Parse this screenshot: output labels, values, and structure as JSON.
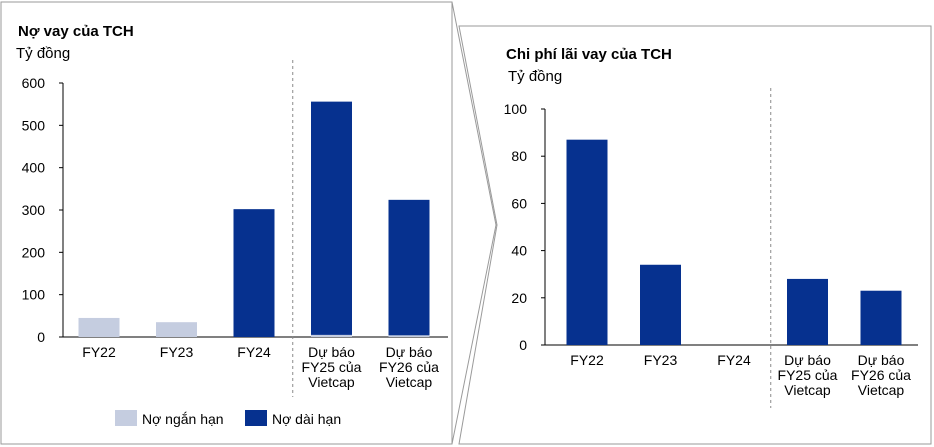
{
  "chart_data": [
    {
      "type": "bar",
      "title": "Nợ vay của TCH",
      "ylabel": "Tỷ đồng",
      "stacked": true,
      "categories": [
        "FY22",
        "FY23",
        "FY24",
        "Dự báo FY25 của Vietcap",
        "Dự báo FY26 của Vietcap"
      ],
      "category_lines": [
        [
          "FY22"
        ],
        [
          "FY23"
        ],
        [
          "FY24"
        ],
        [
          "Dự báo",
          "FY25 của",
          "Vietcap"
        ],
        [
          "Dự báo",
          "FY26 của",
          "Vietcap"
        ]
      ],
      "series": [
        {
          "name": "Nợ ngắn hạn",
          "color": "#c5cde0",
          "values": [
            45,
            35,
            0,
            5,
            4
          ]
        },
        {
          "name": "Nợ dài hạn",
          "color": "#06318f",
          "values": [
            0,
            0,
            302,
            551,
            320
          ]
        }
      ],
      "ylim": [
        0,
        600
      ],
      "yticks": [
        0,
        100,
        200,
        300,
        400,
        500,
        600
      ],
      "forecast_divider_after_index": 2,
      "legend": "bottom",
      "grid": false
    },
    {
      "type": "bar",
      "title": "Chi phí lãi vay của TCH",
      "ylabel": "Tỷ đồng",
      "categories": [
        "FY22",
        "FY23",
        "FY24",
        "Dự báo FY25 của Vietcap",
        "Dự báo FY26 của Vietcap"
      ],
      "category_lines": [
        [
          "FY22"
        ],
        [
          "FY23"
        ],
        [
          "FY24"
        ],
        [
          "Dự báo",
          "FY25 của",
          "Vietcap"
        ],
        [
          "Dự báo",
          "FY26 của",
          "Vietcap"
        ]
      ],
      "series": [
        {
          "color": "#06318f",
          "values": [
            87,
            34,
            0,
            28,
            23
          ]
        }
      ],
      "ylim": [
        0,
        100
      ],
      "yticks": [
        0,
        20,
        40,
        60,
        80,
        100
      ],
      "forecast_divider_after_index": 2,
      "grid": false
    }
  ]
}
